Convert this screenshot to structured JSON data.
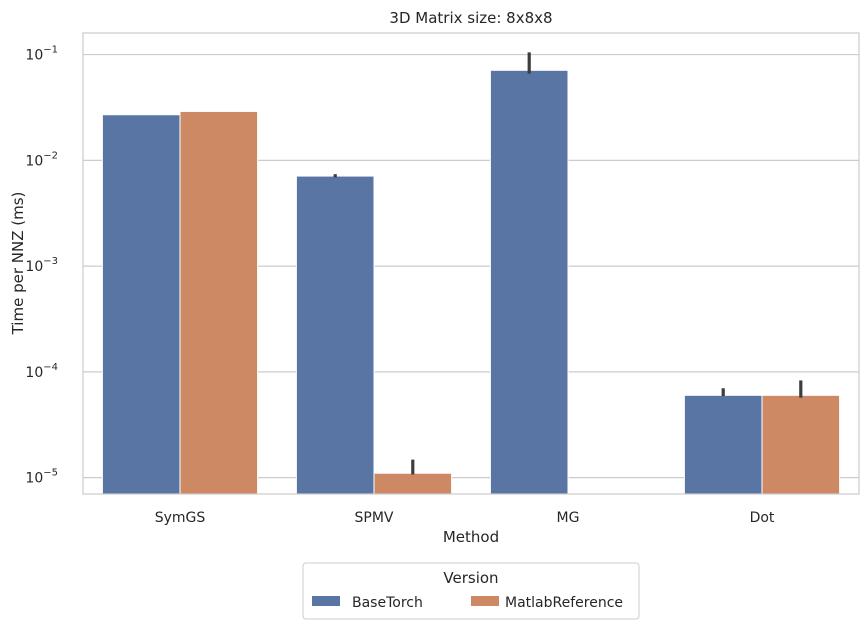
{
  "chart_data": {
    "type": "bar",
    "title": "3D Matrix size: 8x8x8",
    "xlabel": "Method",
    "ylabel": "Time per NNZ (ms)",
    "yscale": "log",
    "ylim": [
      7e-06,
      0.16
    ],
    "yticks": [
      {
        "value": 1e-05,
        "base": "10",
        "exp": "−5"
      },
      {
        "value": 0.0001,
        "base": "10",
        "exp": "−4"
      },
      {
        "value": 0.001,
        "base": "10",
        "exp": "−3"
      },
      {
        "value": 0.01,
        "base": "10",
        "exp": "−2"
      },
      {
        "value": 0.1,
        "base": "10",
        "exp": "−1"
      }
    ],
    "grid": true,
    "categories": [
      "SymGS",
      "SPMV",
      "MG",
      "Dot"
    ],
    "series": [
      {
        "name": "BaseTorch",
        "color": "#5875a4",
        "values": [
          0.027,
          0.0071,
          0.071,
          6e-05
        ],
        "err_low": [
          0.027,
          0.0069,
          0.066,
          5.9e-05
        ],
        "err_high": [
          0.027,
          0.0074,
          0.105,
          7e-05
        ]
      },
      {
        "name": "MatlabReference",
        "color": "#cc8963",
        "values": [
          0.029,
          1.1e-05,
          null,
          6e-05
        ],
        "err_low": [
          0.029,
          1.07e-05,
          null,
          5.7e-05
        ],
        "err_high": [
          0.029,
          1.48e-05,
          null,
          8.3e-05
        ]
      }
    ],
    "legend": {
      "title": "Version",
      "placement": "below",
      "columns": 2
    }
  }
}
